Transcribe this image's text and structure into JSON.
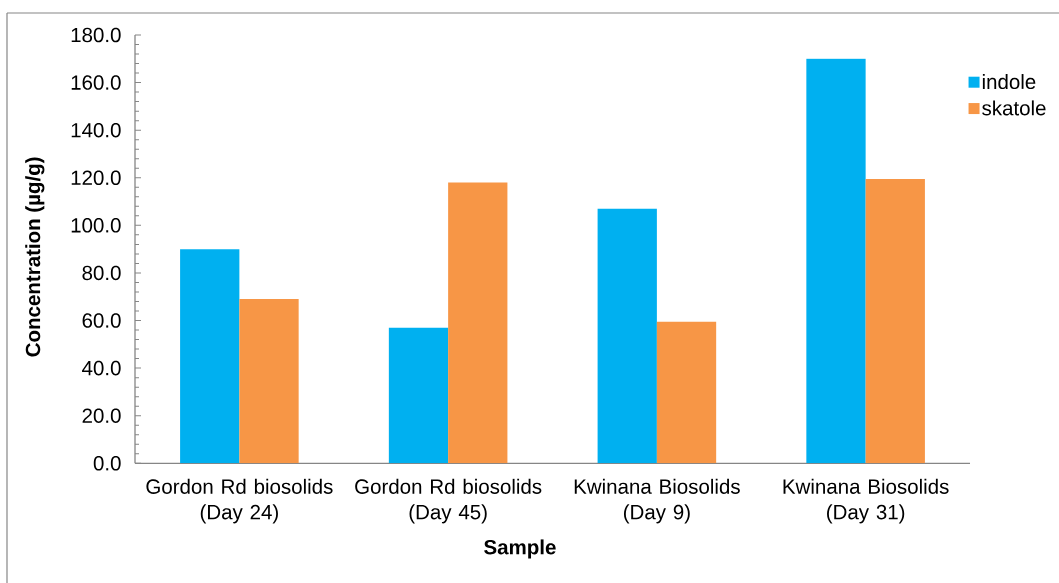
{
  "chart_data": {
    "type": "bar",
    "xlabel": "Sample",
    "ylabel": "Concentration (µg/g)",
    "categories": [
      "Gordon Rd biosolids (Day 24)",
      "Gordon Rd biosolids (Day 45)",
      "Kwinana Biosolids (Day 9)",
      "Kwinana Biosolids (Day 31)"
    ],
    "series": [
      {
        "name": "indole",
        "color": "#00b0f0",
        "values": [
          90,
          57,
          107,
          170
        ]
      },
      {
        "name": "skatole",
        "color": "#f79646",
        "values": [
          69,
          118,
          59.5,
          119.5
        ]
      }
    ],
    "ylim": [
      0,
      180
    ],
    "yticks": [
      {
        "value": 0,
        "label": "0.0"
      },
      {
        "value": 20,
        "label": "20.0"
      },
      {
        "value": 40,
        "label": "40.0"
      },
      {
        "value": 60,
        "label": "60.0"
      },
      {
        "value": 80,
        "label": "80.0"
      },
      {
        "value": 100,
        "label": "100.0"
      },
      {
        "value": 120,
        "label": "120.0"
      },
      {
        "value": 140,
        "label": "140.0"
      },
      {
        "value": 160,
        "label": "160.0"
      },
      {
        "value": 180,
        "label": "180.0"
      }
    ],
    "legend": "top right"
  }
}
